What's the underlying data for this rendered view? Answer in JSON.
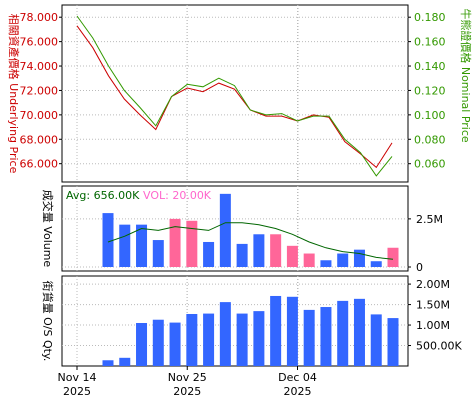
{
  "chart_data": [
    {
      "type": "line",
      "panel": "price",
      "left_axis_label": "相關資產價格 Underlying Price",
      "right_axis_label": "牛熊證價格 Nominal Price",
      "left_ticks": [
        "66.000",
        "68.000",
        "70.000",
        "72.000",
        "74.000",
        "76.000",
        "78.000"
      ],
      "right_ticks": [
        "0.060",
        "0.080",
        "0.100",
        "0.120",
        "0.140",
        "0.160",
        "0.180"
      ],
      "left_ylim": [
        64.5,
        79.0
      ],
      "right_ylim": [
        0.045,
        0.19
      ],
      "colors": {
        "underlying": "#cc0000",
        "nominal": "#339900",
        "left_axis": "#cc0000",
        "right_axis": "#339900"
      },
      "series": [
        {
          "key": "underlying",
          "values": [
            77.3,
            75.5,
            73.2,
            71.3,
            70.0,
            68.8,
            71.5,
            72.2,
            71.9,
            72.6,
            72.1,
            70.4,
            69.9,
            69.9,
            69.5,
            70.0,
            69.8,
            67.8,
            66.8,
            65.7,
            67.7
          ]
        },
        {
          "key": "nominal",
          "values": [
            0.181,
            0.163,
            0.14,
            0.12,
            0.106,
            0.091,
            0.115,
            0.125,
            0.123,
            0.13,
            0.124,
            0.104,
            0.1,
            0.101,
            0.095,
            0.099,
            0.099,
            0.08,
            0.069,
            0.05,
            0.066
          ]
        }
      ]
    },
    {
      "type": "bar",
      "panel": "volume",
      "left_axis_label": "成交量 Volume",
      "legend": {
        "avg": "Avg: 656.00K",
        "vol": "VOL: 20.00K",
        "avg_color": "#006600",
        "vol_color": "#ff66cc"
      },
      "right_ticks": [
        "0",
        "2.5M"
      ],
      "ylim": [
        0,
        4000000
      ],
      "values": [
        2800000,
        2200000,
        2200000,
        1400000,
        2500000,
        2400000,
        1300000,
        3800000,
        1200000,
        1700000,
        1700000,
        1100000,
        700000,
        350000,
        700000,
        900000,
        300000,
        1000000
      ],
      "bar_colors": [
        "#3366ff",
        "#3366ff",
        "#3366ff",
        "#3366ff",
        "#ff6699",
        "#ff6699",
        "#3366ff",
        "#3366ff",
        "#3366ff",
        "#3366ff",
        "#ff6699",
        "#ff6699",
        "#ff6699",
        "#3366ff",
        "#3366ff",
        "#3366ff",
        "#3366ff",
        "#ff6699"
      ],
      "avg_line": [
        1300000,
        1600000,
        2000000,
        1900000,
        2100000,
        2000000,
        1900000,
        2300000,
        2300000,
        2200000,
        2000000,
        1700000,
        1300000,
        1000000,
        800000,
        700000,
        500000,
        400000
      ]
    },
    {
      "type": "bar",
      "panel": "outstanding",
      "left_axis_label": "街貨量 O/S Qty.",
      "right_ticks": [
        "500.00K",
        "1.00M",
        "1.50M",
        "2.00M"
      ],
      "ylim": [
        0,
        2100000
      ],
      "values": [
        140000,
        200000,
        1050000,
        1130000,
        1060000,
        1270000,
        1280000,
        1560000,
        1280000,
        1340000,
        1710000,
        1690000,
        1370000,
        1440000,
        1590000,
        1640000,
        1260000,
        1170000
      ],
      "bar_color": "#3366ff"
    }
  ],
  "x_axis": {
    "ticks": [
      {
        "line1": "Nov 14",
        "line2": "2025",
        "index": 0
      },
      {
        "line1": "Nov 25",
        "line2": "2025",
        "index": 7
      },
      {
        "line1": "Dec 04",
        "line2": "2025",
        "index": 14
      }
    ],
    "points": 21
  }
}
